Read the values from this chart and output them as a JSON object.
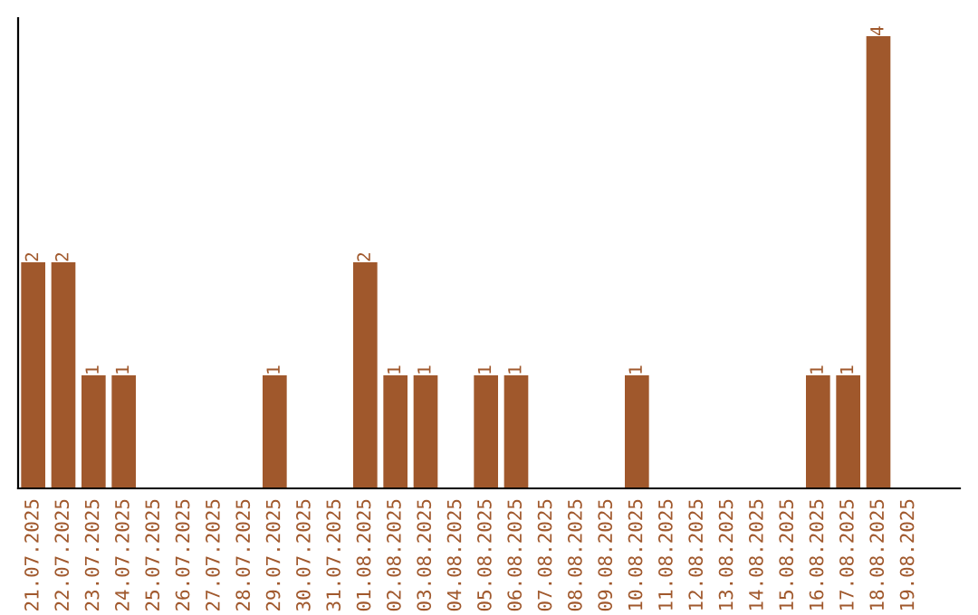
{
  "chart_data": {
    "type": "bar",
    "categories": [
      "21.07.2025",
      "22.07.2025",
      "23.07.2025",
      "24.07.2025",
      "25.07.2025",
      "26.07.2025",
      "27.07.2025",
      "28.07.2025",
      "29.07.2025",
      "30.07.2025",
      "31.07.2025",
      "01.08.2025",
      "02.08.2025",
      "03.08.2025",
      "04.08.2025",
      "05.08.2025",
      "06.08.2025",
      "07.08.2025",
      "08.08.2025",
      "09.08.2025",
      "10.08.2025",
      "11.08.2025",
      "12.08.2025",
      "13.08.2025",
      "14.08.2025",
      "15.08.2025",
      "16.08.2025",
      "17.08.2025",
      "18.08.2025",
      "19.08.2025"
    ],
    "values": [
      2,
      2,
      1,
      1,
      0,
      0,
      0,
      0,
      1,
      0,
      0,
      2,
      1,
      1,
      0,
      1,
      1,
      0,
      0,
      0,
      1,
      0,
      0,
      0,
      0,
      0,
      1,
      1,
      4,
      0
    ],
    "value_labels": [
      "2",
      "2",
      "1",
      "1",
      null,
      null,
      null,
      null,
      "1",
      null,
      null,
      "2",
      "1",
      "1",
      null,
      "1",
      "1",
      null,
      null,
      null,
      "1",
      null,
      null,
      null,
      null,
      null,
      "1",
      "1",
      "4",
      null
    ],
    "color": "#a0582c",
    "grid": false,
    "legend": false
  }
}
